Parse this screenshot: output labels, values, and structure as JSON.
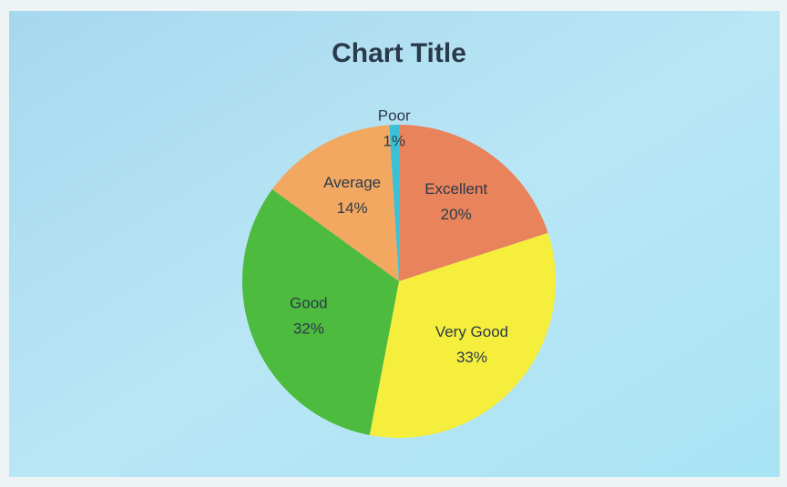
{
  "chart_data": {
    "type": "pie",
    "title": "Chart Title",
    "categories": [
      "Excellent",
      "Very Good",
      "Good",
      "Average",
      "Poor"
    ],
    "values": [
      20,
      33,
      32,
      14,
      1
    ],
    "value_labels": [
      "20%",
      "33%",
      "32%",
      "14%",
      "1%"
    ],
    "colors": [
      "#e8835c",
      "#f5ee3c",
      "#4dbb3d",
      "#f3a862",
      "#3cc0d6"
    ]
  }
}
